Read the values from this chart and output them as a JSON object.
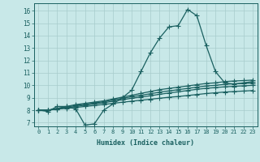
{
  "xlabel": "Humidex (Indice chaleur)",
  "xlim": [
    -0.5,
    23.5
  ],
  "ylim": [
    6.7,
    16.6
  ],
  "yticks": [
    7,
    8,
    9,
    10,
    11,
    12,
    13,
    14,
    15,
    16
  ],
  "xticks": [
    0,
    1,
    2,
    3,
    4,
    5,
    6,
    7,
    8,
    9,
    10,
    11,
    12,
    13,
    14,
    15,
    16,
    17,
    18,
    19,
    20,
    21,
    22,
    23
  ],
  "bg_color": "#c8e8e8",
  "grid_color": "#a8cccc",
  "line_color": "#1a6060",
  "line_width": 0.9,
  "marker": "+",
  "marker_size": 4,
  "marker_lw": 0.8,
  "curves": [
    [
      8.0,
      7.9,
      8.3,
      8.3,
      8.1,
      6.8,
      6.9,
      8.0,
      8.5,
      9.0,
      9.6,
      11.1,
      12.6,
      13.8,
      14.7,
      14.8,
      16.1,
      15.6,
      13.2,
      11.1,
      10.2,
      10.1,
      10.2,
      10.3
    ],
    [
      8.0,
      8.0,
      8.15,
      8.3,
      8.45,
      8.55,
      8.65,
      8.75,
      8.9,
      9.05,
      9.2,
      9.35,
      9.5,
      9.65,
      9.75,
      9.85,
      9.95,
      10.05,
      10.15,
      10.2,
      10.3,
      10.35,
      10.38,
      10.42
    ],
    [
      8.0,
      8.0,
      8.12,
      8.25,
      8.38,
      8.48,
      8.58,
      8.68,
      8.82,
      8.95,
      9.08,
      9.2,
      9.32,
      9.45,
      9.55,
      9.65,
      9.75,
      9.85,
      9.95,
      10.0,
      10.08,
      10.12,
      10.15,
      10.18
    ],
    [
      8.0,
      8.0,
      8.1,
      8.2,
      8.3,
      8.4,
      8.5,
      8.6,
      8.72,
      8.84,
      8.96,
      9.06,
      9.16,
      9.28,
      9.38,
      9.48,
      9.58,
      9.68,
      9.76,
      9.82,
      9.88,
      9.92,
      9.96,
      10.0
    ],
    [
      8.0,
      8.0,
      8.08,
      8.15,
      8.22,
      8.3,
      8.38,
      8.46,
      8.55,
      8.64,
      8.72,
      8.8,
      8.88,
      8.96,
      9.04,
      9.1,
      9.18,
      9.26,
      9.34,
      9.4,
      9.46,
      9.5,
      9.54,
      9.58
    ]
  ]
}
